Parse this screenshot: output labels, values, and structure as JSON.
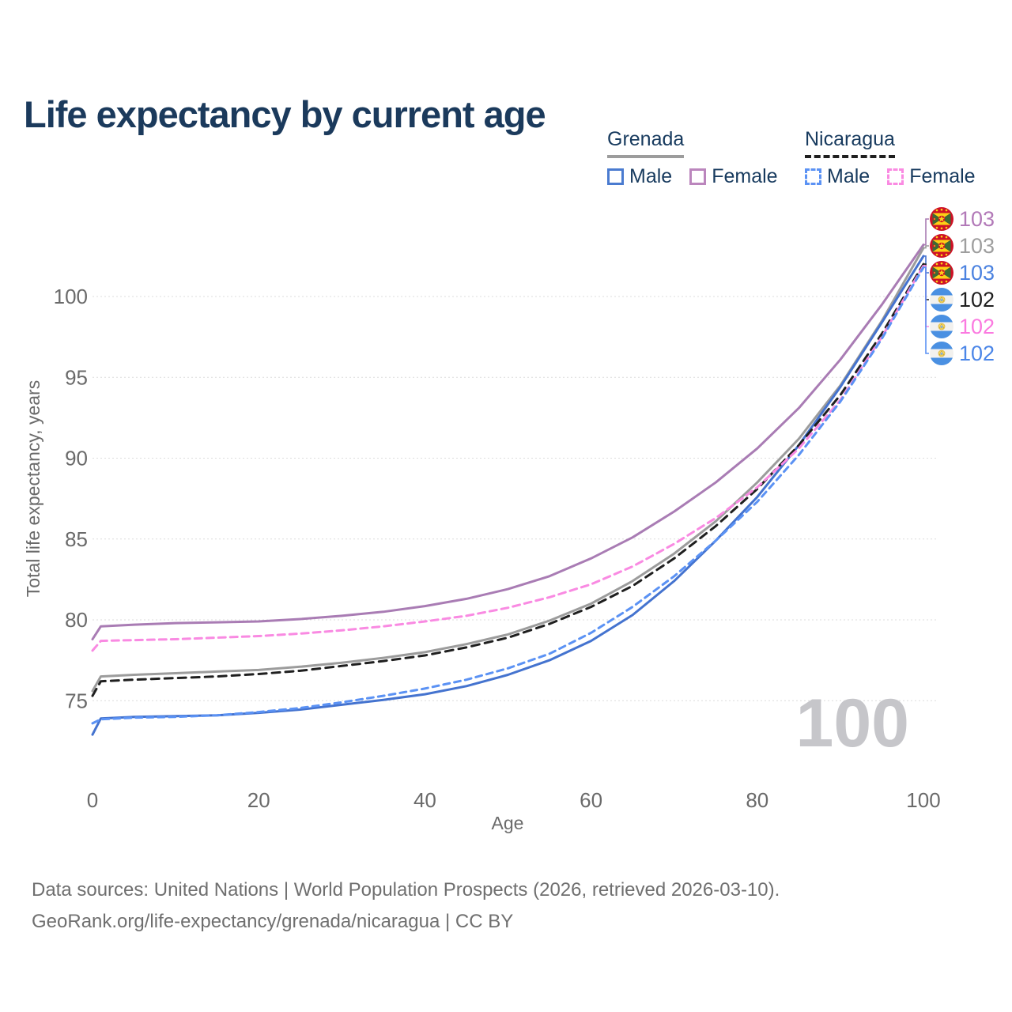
{
  "title": "Life expectancy by current age",
  "legend": {
    "groups": [
      {
        "country": "Grenada",
        "line_style": "solid",
        "underline_color": "#9c9c9c",
        "items": [
          {
            "label": "Male",
            "color": "#4a7bd0",
            "dashed": false
          },
          {
            "label": "Female",
            "color": "#bb86bd",
            "dashed": false
          }
        ]
      },
      {
        "country": "Nicaragua",
        "line_style": "dashed",
        "underline_color": "#1f1f1f",
        "items": [
          {
            "label": "Male",
            "color": "#5b92f4",
            "dashed": true
          },
          {
            "label": "Female",
            "color": "#fa8ae2",
            "dashed": true
          }
        ]
      }
    ]
  },
  "chart_data": {
    "type": "line",
    "title": "Life expectancy by current age",
    "xlabel": "Age",
    "ylabel": "Total life expectancy, years",
    "x_ticks": [
      0,
      20,
      40,
      60,
      80,
      100
    ],
    "y_ticks": [
      75,
      80,
      85,
      90,
      95,
      100
    ],
    "xlim": [
      0,
      100
    ],
    "ylim": [
      72,
      104.5
    ],
    "grid": "horizontal-only",
    "legend_position": "top-right",
    "ages": [
      0,
      1,
      5,
      10,
      15,
      20,
      25,
      30,
      35,
      40,
      45,
      50,
      55,
      60,
      65,
      70,
      75,
      80,
      85,
      90,
      95,
      100
    ],
    "series": [
      {
        "name": "Grenada Female",
        "country": "grenada",
        "sex": "female",
        "color": "#a97cb4",
        "dash": null,
        "values": [
          78.8,
          79.6,
          79.7,
          79.8,
          79.85,
          79.9,
          80.05,
          80.25,
          80.5,
          80.85,
          81.3,
          81.9,
          82.7,
          83.8,
          85.1,
          86.7,
          88.5,
          90.6,
          93.1,
          96.1,
          99.5,
          103.2
        ]
      },
      {
        "name": "Grenada Total",
        "country": "grenada",
        "sex": "both",
        "color": "#9c9c9c",
        "dash": null,
        "values": [
          75.6,
          76.5,
          76.6,
          76.7,
          76.8,
          76.9,
          77.1,
          77.35,
          77.65,
          78.0,
          78.5,
          79.1,
          79.95,
          81.0,
          82.4,
          84.1,
          86.1,
          88.5,
          91.2,
          94.5,
          98.5,
          103.0
        ]
      },
      {
        "name": "Grenada Male",
        "country": "grenada",
        "sex": "male",
        "color": "#4473cf",
        "dash": null,
        "values": [
          72.9,
          73.9,
          74.0,
          74.05,
          74.1,
          74.25,
          74.45,
          74.75,
          75.05,
          75.4,
          75.9,
          76.6,
          77.5,
          78.7,
          80.3,
          82.4,
          84.9,
          87.6,
          90.8,
          94.4,
          98.4,
          102.5
        ]
      },
      {
        "name": "Nicaragua Total",
        "country": "nicaragua",
        "sex": "both",
        "color": "#1f1f1f",
        "dash": "10 7",
        "values": [
          75.3,
          76.2,
          76.3,
          76.4,
          76.5,
          76.65,
          76.85,
          77.15,
          77.45,
          77.8,
          78.3,
          78.9,
          79.75,
          80.8,
          82.1,
          83.8,
          85.8,
          88.1,
          90.8,
          93.9,
          97.7,
          102.0
        ]
      },
      {
        "name": "Nicaragua Female",
        "country": "nicaragua",
        "sex": "female",
        "color": "#f98ae2",
        "dash": "9 6",
        "values": [
          78.1,
          78.7,
          78.75,
          78.8,
          78.9,
          79.0,
          79.15,
          79.35,
          79.6,
          79.9,
          80.25,
          80.75,
          81.4,
          82.2,
          83.3,
          84.7,
          86.3,
          88.2,
          90.6,
          93.6,
          97.5,
          101.9
        ]
      },
      {
        "name": "Nicaragua Male",
        "country": "nicaragua",
        "sex": "male",
        "color": "#5b92f4",
        "dash": "8 6",
        "values": [
          73.6,
          73.85,
          73.95,
          74.0,
          74.1,
          74.3,
          74.55,
          74.9,
          75.3,
          75.75,
          76.3,
          77.0,
          77.9,
          79.2,
          80.8,
          82.7,
          84.9,
          87.3,
          90.2,
          93.5,
          97.4,
          101.8
        ]
      }
    ]
  },
  "endpoint_labels": [
    {
      "value": "103",
      "country": "grenada",
      "color": "#b279b8"
    },
    {
      "value": "103",
      "country": "grenada",
      "color": "#9e9e9e"
    },
    {
      "value": "103",
      "country": "grenada",
      "color": "#4b82e0"
    },
    {
      "value": "102",
      "country": "nicaragua",
      "color": "#1f1f1f"
    },
    {
      "value": "102",
      "country": "nicaragua",
      "color": "#fb7ae0"
    },
    {
      "value": "102",
      "country": "nicaragua",
      "color": "#4b86e8"
    }
  ],
  "watermark": "100",
  "footer": {
    "line1": "Data sources: United Nations | World Population Prospects (2026, retrieved 2026-03-10).",
    "line2": "GeoRank.org/life-expectancy/grenada/nicaragua | CC BY"
  }
}
